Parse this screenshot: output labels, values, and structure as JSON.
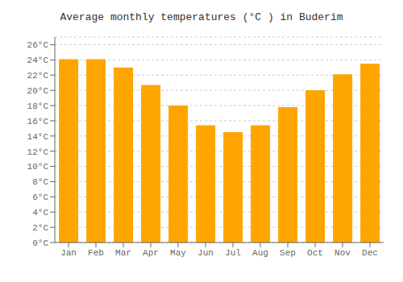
{
  "chart_data": {
    "type": "bar",
    "title": "Average monthly temperatures (°C ) in Buderim",
    "categories": [
      "Jan",
      "Feb",
      "Mar",
      "Apr",
      "May",
      "Jun",
      "Jul",
      "Aug",
      "Sep",
      "Oct",
      "Nov",
      "Dec"
    ],
    "values": [
      24.1,
      24.1,
      23.0,
      20.7,
      18.0,
      15.4,
      14.5,
      15.4,
      17.8,
      20.0,
      22.1,
      23.5
    ],
    "color": "#FFA500",
    "ylim": [
      0,
      27
    ],
    "yticks": [
      {
        "value": 0,
        "label": "0°C"
      },
      {
        "value": 2,
        "label": "2°C"
      },
      {
        "value": 4,
        "label": "4°C"
      },
      {
        "value": 6,
        "label": "6°C"
      },
      {
        "value": 8,
        "label": "8°C"
      },
      {
        "value": 10,
        "label": "10°C"
      },
      {
        "value": 12,
        "label": "12°C"
      },
      {
        "value": 14,
        "label": "14°C"
      },
      {
        "value": 16,
        "label": "16°C"
      },
      {
        "value": 18,
        "label": "18°C"
      },
      {
        "value": 20,
        "label": "20°C"
      },
      {
        "value": 22,
        "label": "22°C"
      },
      {
        "value": 24,
        "label": "24°C"
      },
      {
        "value": 26,
        "label": "26°C"
      }
    ],
    "grid": true
  }
}
